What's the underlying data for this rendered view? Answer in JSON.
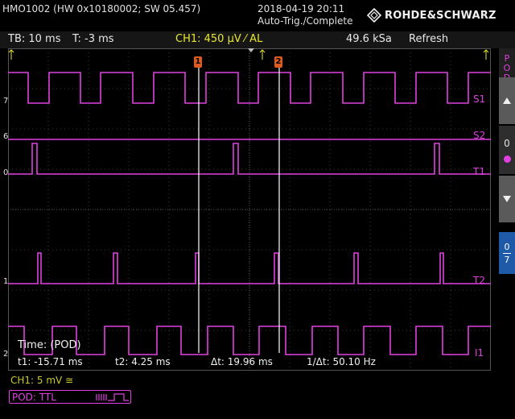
{
  "header": {
    "device": "HMO1002 (HW 0x10180002; SW 05.457)",
    "datetime": "2018-04-19 20:11",
    "trigger_status": "Auto-Trig./Complete",
    "brand": "ROHDE&SCHWARZ"
  },
  "status": {
    "timebase": "TB: 10 ms",
    "trigger_time": "T: -3 ms",
    "ch1_trigger": "CH1: 450 µV ⁄ AL",
    "sample_rate": "49.6 kSa",
    "mode": "Refresh"
  },
  "traces": {
    "labels": [
      "S1",
      "S2",
      "T1",
      "T2",
      "I1"
    ],
    "levels": [
      "7",
      "6",
      "0",
      "1",
      "2"
    ],
    "color": "#e040e0"
  },
  "cursors": {
    "c1_label": "1",
    "c2_label": "2",
    "time_label": "Time: (POD)",
    "t1": "t1: -15.71 ms",
    "t2": "t2: 4.25 ms",
    "dt": "Δt: 19.96 ms",
    "inv_dt": "1/Δt: 50.10 Hz"
  },
  "side": {
    "top_label": "POD",
    "bus_label": "0",
    "pod_range_top": "0",
    "pod_range_bottom": "7"
  },
  "footer": {
    "ch1_scale": "CH1: 5 mV ≅",
    "pod_logic": "POD: TTL"
  },
  "colors": {
    "trace": "#e040e0",
    "ch1": "#e8e830",
    "grid": "#3a3a3a",
    "cursor": "#ffffff",
    "marker": "#e05a1e"
  }
}
